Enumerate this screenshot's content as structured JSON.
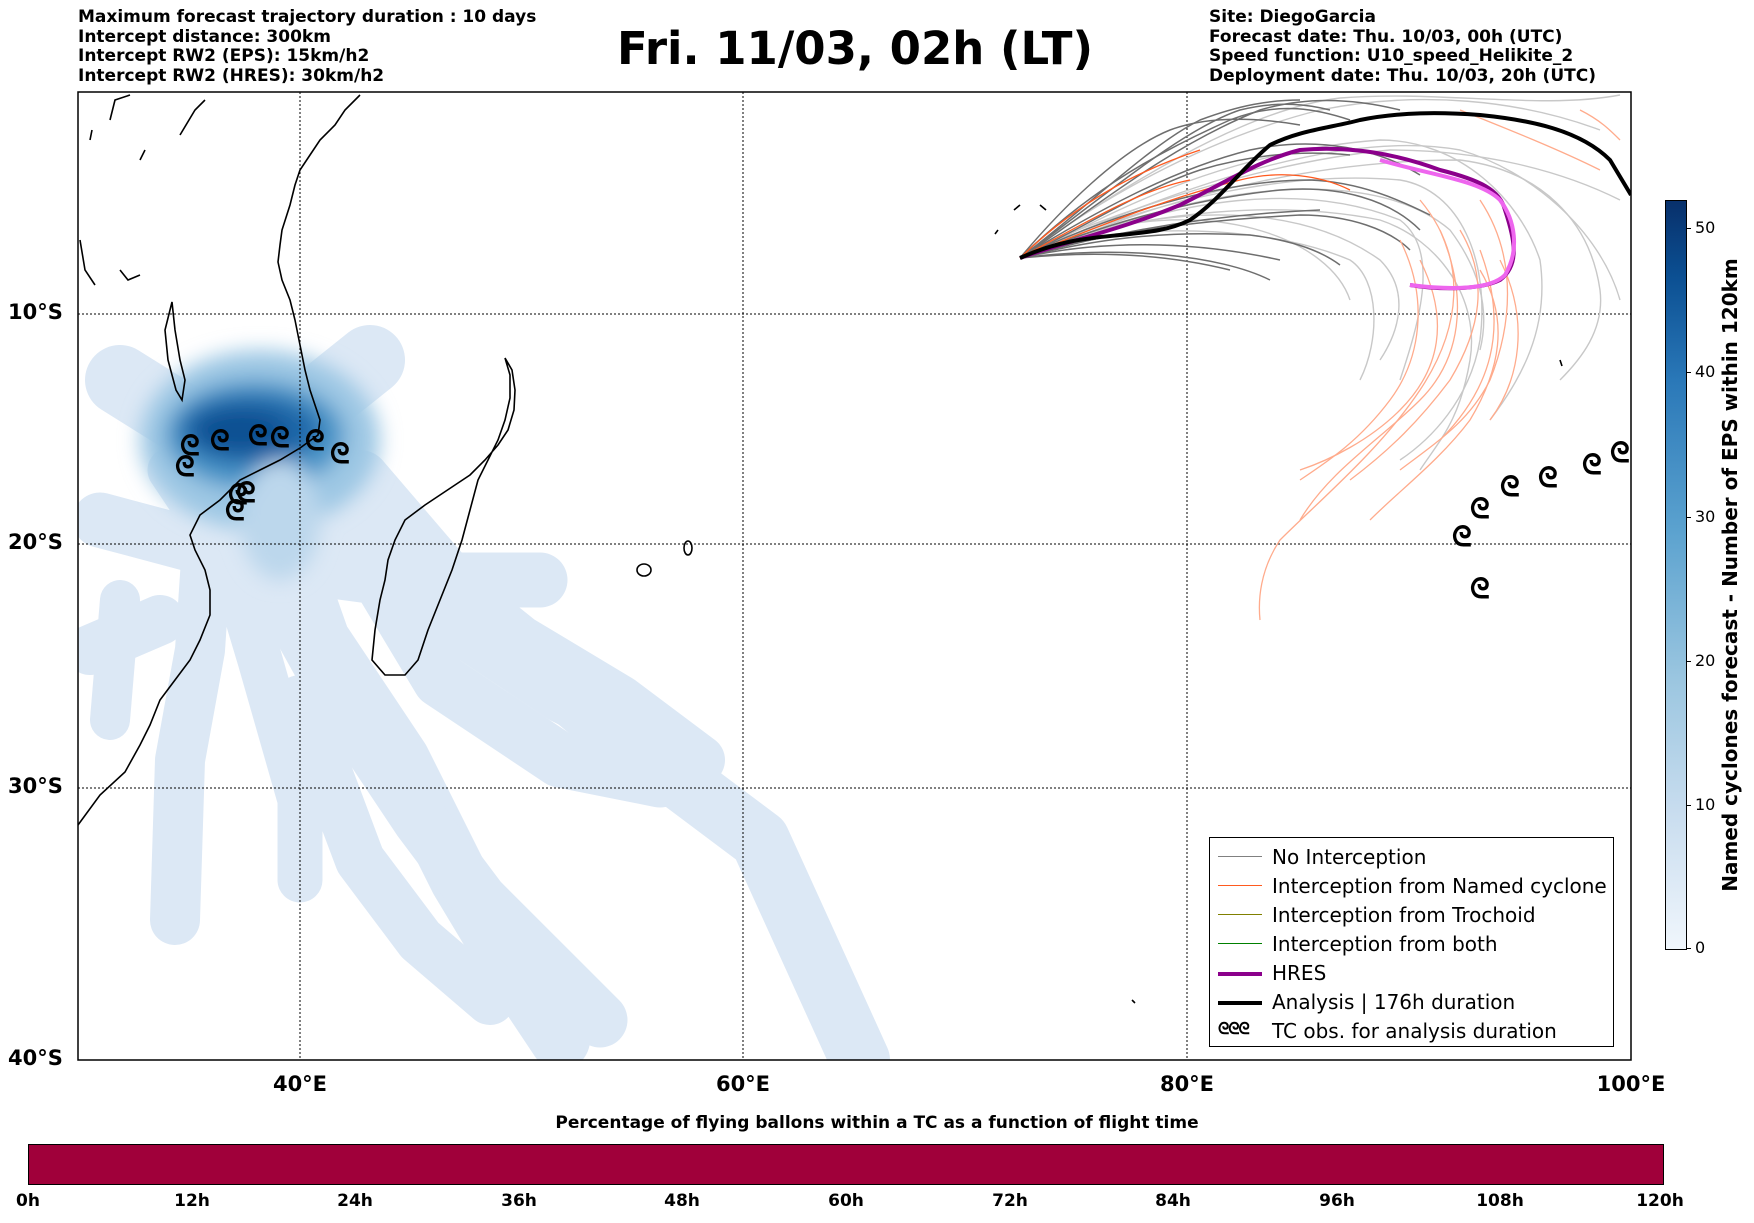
{
  "header": {
    "info_left": [
      "Maximum forecast trajectory duration : 10 days",
      "Intercept distance: 300km",
      "Intercept RW2 (EPS):  15km/h2",
      "Intercept RW2 (HRES): 30km/h2"
    ],
    "title": "Fri. 11/03, 02h (LT)",
    "info_right": [
      "Site: DiegoGarcia",
      "Forecast date: Thu. 10/03, 00h (UTC)",
      "Speed function: U10_speed_Helikite_2",
      "Deployment date: Thu. 10/03, 20h (UTC)"
    ]
  },
  "map": {
    "lat_labels": [
      "10°S",
      "20°S",
      "30°S",
      "40°S"
    ],
    "lon_labels": [
      "40°E",
      "60°E",
      "80°E",
      "100°E"
    ]
  },
  "legend": {
    "items": [
      {
        "label": "No Interception",
        "color": "#808080"
      },
      {
        "label": "Interception from Named cyclone",
        "color": "#ff5a1f"
      },
      {
        "label": "Interception from Trochoid",
        "color": "#808000"
      },
      {
        "label": "Interception from both",
        "color": "#008000"
      },
      {
        "label": "HRES",
        "color": "#8b008b"
      },
      {
        "label": "Analysis | 176h duration",
        "color": "#000000"
      },
      {
        "label": "TC obs. for analysis duration",
        "color": "#000000"
      }
    ],
    "tc_symbol": "ᘓᘓᘓ"
  },
  "colorbar": {
    "label": "Named cyclones forecast - Number of EPS within 120km",
    "ticks": [
      "0",
      "10",
      "20",
      "30",
      "40",
      "50"
    ],
    "colormap": "Blues"
  },
  "bottom": {
    "title": "Percentage of flying ballons within a TC as a function of flight time",
    "bar_color": "#a0003a",
    "ticks": [
      "0h",
      "12h",
      "24h",
      "36h",
      "48h",
      "60h",
      "72h",
      "84h",
      "96h",
      "108h",
      "120h"
    ]
  }
}
